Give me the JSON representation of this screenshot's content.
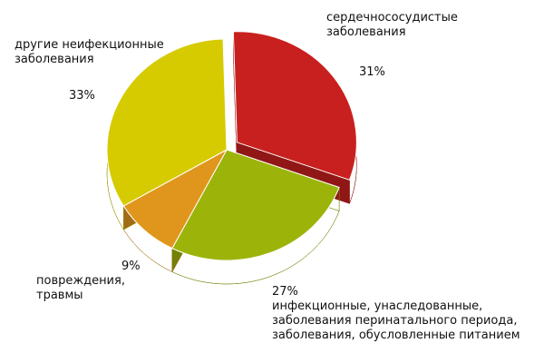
{
  "chart_data": {
    "type": "pie",
    "categories": [
      "сердечнососудистые\nзаболевания",
      "инфекционные, унаследованные,\nзаболевания перинатального периода,\nзаболевания, обусловленные питанием",
      "повреждения,\nтравмы",
      "другие неифекционные\nзаболевания"
    ],
    "values": [
      31,
      27,
      9,
      33
    ],
    "value_labels": [
      "31%",
      "27%",
      "9%",
      "33%"
    ],
    "colors": [
      "#c8201e",
      "#9cb40a",
      "#e0961c",
      "#d6cb00"
    ]
  }
}
